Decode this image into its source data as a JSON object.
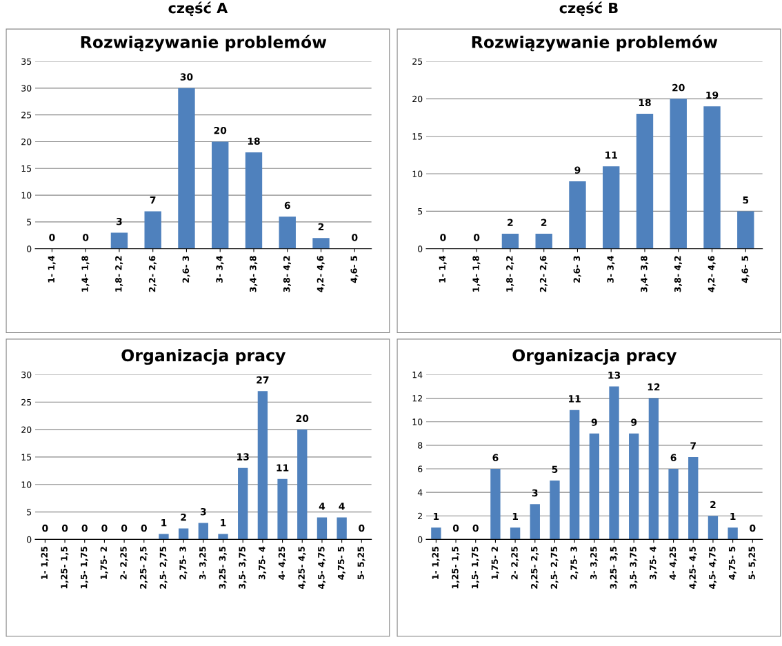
{
  "chart_data": [
    {
      "type": "bar",
      "title": "Rozwiązywanie problemów",
      "annotations": [
        "część A"
      ],
      "categories": [
        "1- 1,4",
        "1,4- 1,8",
        "1,8- 2,2",
        "2,2- 2,6",
        "2,6- 3",
        "3- 3,4",
        "3,4- 3,8",
        "3,8- 4,2",
        "4,2- 4,6",
        "4,6- 5"
      ],
      "values": [
        0,
        0,
        3,
        7,
        30,
        20,
        18,
        6,
        2,
        0
      ],
      "color": "#4f81bd",
      "ylim": [
        0,
        35
      ],
      "yticks": [
        0,
        5,
        10,
        15,
        20,
        25,
        30,
        35
      ],
      "grid": "y",
      "data_labels": true
    },
    {
      "type": "bar",
      "title": "Rozwiązywanie problemów",
      "annotations": [
        "część B"
      ],
      "categories": [
        "1- 1,4",
        "1,4- 1,8",
        "1,8- 2,2",
        "2,2- 2,6",
        "2,6- 3",
        "3- 3,4",
        "3,4- 3,8",
        "3,8- 4,2",
        "4,2- 4,6",
        "4,6- 5"
      ],
      "values": [
        0,
        0,
        2,
        2,
        9,
        11,
        18,
        20,
        19,
        5
      ],
      "color": "#4f81bd",
      "ylim": [
        0,
        25
      ],
      "yticks": [
        0,
        5,
        10,
        15,
        20,
        25
      ],
      "grid": "y",
      "data_labels": true
    },
    {
      "type": "bar",
      "title": "Organizacja pracy",
      "categories": [
        "1- 1,25",
        "1,25- 1,5",
        "1,5- 1,75",
        "1,75- 2",
        "2- 2,25",
        "2,25- 2,5",
        "2,5- 2,75",
        "2,75- 3",
        "3- 3,25",
        "3,25- 3,5",
        "3,5- 3,75",
        "3,75- 4",
        "4- 4,25",
        "4,25- 4,5",
        "4,5- 4,75",
        "4,75- 5",
        "5- 5,25"
      ],
      "values": [
        0,
        0,
        0,
        0,
        0,
        0,
        1,
        2,
        3,
        1,
        13,
        27,
        11,
        20,
        4,
        4,
        0
      ],
      "color": "#4f81bd",
      "ylim": [
        0,
        30
      ],
      "yticks": [
        0,
        5,
        10,
        15,
        20,
        25,
        30
      ],
      "grid": "y",
      "data_labels": true
    },
    {
      "type": "bar",
      "title": "Organizacja pracy",
      "categories": [
        "1- 1,25",
        "1,25- 1,5",
        "1,5- 1,75",
        "1,75- 2",
        "2- 2,25",
        "2,25- 2,5",
        "2,5- 2,75",
        "2,75- 3",
        "3- 3,25",
        "3,25- 3,5",
        "3,5- 3,75",
        "3,75- 4",
        "4- 4,25",
        "4,25- 4,5",
        "4,5- 4,75",
        "4,75- 5",
        "5- 5,25"
      ],
      "values": [
        1,
        0,
        0,
        6,
        1,
        3,
        5,
        11,
        9,
        13,
        9,
        12,
        6,
        7,
        2,
        1,
        0
      ],
      "color": "#4f81bd",
      "ylim": [
        0,
        14
      ],
      "yticks": [
        0,
        2,
        4,
        6,
        8,
        10,
        12,
        14
      ],
      "grid": "y",
      "data_labels": true
    }
  ]
}
